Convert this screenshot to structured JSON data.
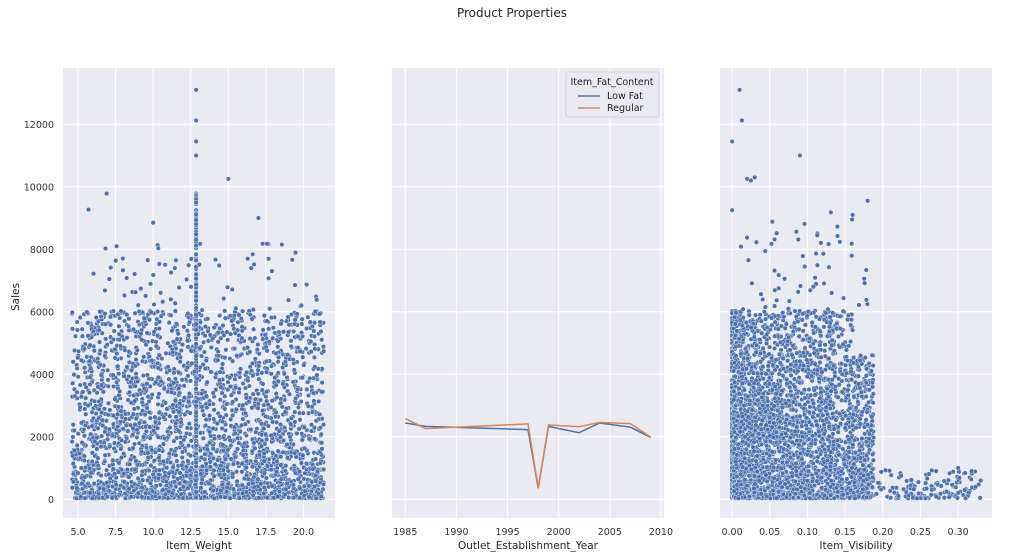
{
  "figure": {
    "title": "Product Properties",
    "colors": {
      "background": "#eaeaf2",
      "grid": "#ffffff",
      "series_low_fat": "#4c72b0",
      "series_regular": "#dd8452",
      "point": "#4c72b0"
    }
  },
  "chart_data": [
    {
      "type": "scatter",
      "xlabel": "Item_Weight",
      "ylabel": "Sales",
      "xlim": [
        4.0,
        22.1
      ],
      "ylim": [
        -600,
        13800
      ],
      "xticks": [
        5.0,
        7.5,
        10.0,
        12.5,
        15.0,
        17.5,
        20.0
      ],
      "xtick_labels": [
        "5.0",
        "7.5",
        "10.0",
        "12.5",
        "15.0",
        "17.5",
        "20.0"
      ],
      "yticks": [
        0,
        2000,
        4000,
        6000,
        8000,
        10000,
        12000
      ],
      "ytick_labels": [
        "0",
        "2000",
        "4000",
        "6000",
        "8000",
        "10000",
        "12000"
      ],
      "grid": true,
      "notable_points": [
        [
          12.86,
          13100
        ],
        [
          12.86,
          12120
        ],
        [
          12.86,
          11450
        ],
        [
          12.86,
          11000
        ],
        [
          15.0,
          10250
        ],
        [
          6.9,
          9780
        ],
        [
          5.7,
          9270
        ],
        [
          10.0,
          8850
        ],
        [
          17.0,
          9000
        ]
      ],
      "x_range": [
        4.6,
        21.35
      ],
      "y_bulk_range": [
        30,
        6000
      ],
      "approx_count": 3300
    },
    {
      "type": "line",
      "xlabel": "Outlet_Establishment_Year",
      "ylabel": "",
      "xlim": [
        1983.7,
        2010.3
      ],
      "ylim": [
        -600,
        13800
      ],
      "xticks": [
        1985,
        1990,
        1995,
        2000,
        2005,
        2010
      ],
      "xtick_labels": [
        "1985",
        "1990",
        "1995",
        "2000",
        "2005",
        "2010"
      ],
      "grid": true,
      "x": [
        1985,
        1987,
        1997,
        1998,
        1999,
        2002,
        2004,
        2007,
        2009
      ],
      "series": [
        {
          "name": "Low Fat",
          "values": [
            2440,
            2330,
            2230,
            350,
            2330,
            2130,
            2440,
            2310,
            1980
          ]
        },
        {
          "name": "Regular",
          "values": [
            2580,
            2260,
            2410,
            370,
            2380,
            2320,
            2460,
            2420,
            1990
          ]
        }
      ],
      "legend": {
        "title": "Item_Fat_Content",
        "placement": "top-right"
      }
    },
    {
      "type": "scatter",
      "xlabel": "Item_Visibility",
      "ylabel": "",
      "xlim": [
        -0.016,
        0.345
      ],
      "ylim": [
        -600,
        13800
      ],
      "xticks": [
        0.0,
        0.05,
        0.1,
        0.15,
        0.2,
        0.25,
        0.3
      ],
      "xtick_labels": [
        "0.00",
        "0.05",
        "0.10",
        "0.15",
        "0.20",
        "0.25",
        "0.30"
      ],
      "grid": true,
      "notable_points": [
        [
          0.01,
          13100
        ],
        [
          0.013,
          12120
        ],
        [
          0.0,
          11450
        ],
        [
          0.09,
          11000
        ],
        [
          0.03,
          10300
        ],
        [
          0.02,
          10250
        ],
        [
          0.025,
          10200
        ],
        [
          0.0,
          9250
        ],
        [
          0.18,
          9550
        ],
        [
          0.16,
          9100
        ],
        [
          0.33,
          600
        ],
        [
          0.3,
          1000
        ]
      ],
      "x_dense_range": [
        0.0,
        0.19
      ],
      "x_sparse_range": [
        0.19,
        0.33
      ],
      "y_bulk_range": [
        30,
        6000
      ],
      "approx_count": 3300
    }
  ]
}
